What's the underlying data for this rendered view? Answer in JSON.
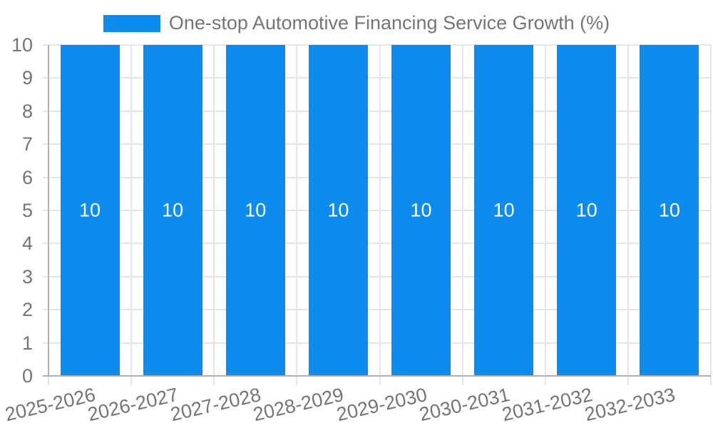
{
  "chart_data": {
    "type": "bar",
    "title": "",
    "legend": {
      "label": "One-stop Automotive Financing Service Growth (%)",
      "position": "top"
    },
    "categories": [
      "2025-2026",
      "2026-2027",
      "2027-2028",
      "2028-2029",
      "2029-2030",
      "2030-2031",
      "2031-2032",
      "2032-2033"
    ],
    "series": [
      {
        "name": "One-stop Automotive Financing Service Growth (%)",
        "values": [
          10,
          10,
          10,
          10,
          10,
          10,
          10,
          10
        ]
      }
    ],
    "bar_value_labels": [
      "10",
      "10",
      "10",
      "10",
      "10",
      "10",
      "10",
      "10"
    ],
    "xlabel": "",
    "ylabel": "",
    "ylim": [
      0,
      10
    ],
    "yticks": [
      0,
      1,
      2,
      3,
      4,
      5,
      6,
      7,
      8,
      9,
      10
    ],
    "grid": true,
    "legend_position": "top-center",
    "colors": {
      "bar": "#0d8cf0",
      "bar_label_text": "#ffffff",
      "grid": "#e4e4e4",
      "axis": "#b0b0b0",
      "tick_text": "#757575",
      "legend_text": "#757575",
      "background": "#ffffff"
    }
  }
}
